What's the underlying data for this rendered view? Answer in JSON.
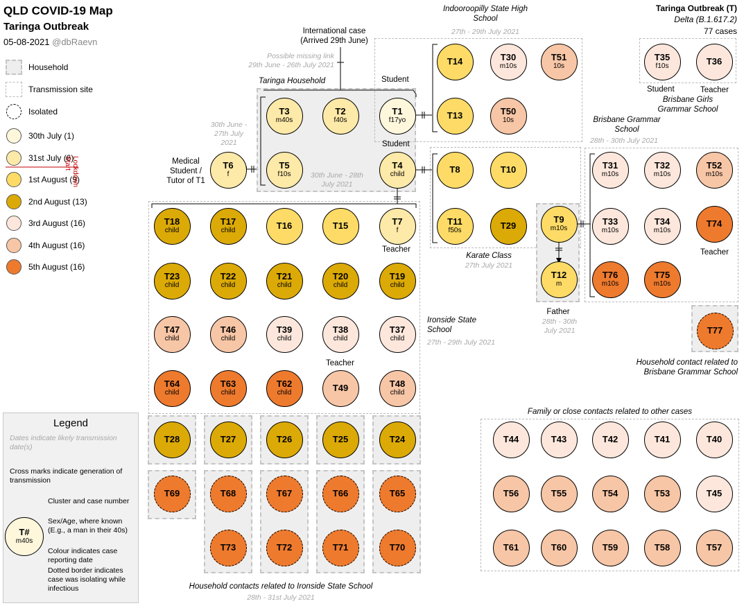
{
  "header": {
    "title": "QLD COVID-19 Map",
    "subtitle": "Taringa Outbreak",
    "date": "05-08-2021",
    "handle": "@dbRaevn"
  },
  "outbreak": {
    "title": "Taringa Outbreak (T)",
    "variant": "Delta (B.1.617.2)",
    "count": "77 cases"
  },
  "colors": {
    "jul30": "#fef7dc",
    "jul31": "#fde9a8",
    "aug1": "#fddb66",
    "aug2": "#dcaa06",
    "aug3": "#fde7dc",
    "aug4": "#f7c6a6",
    "aug5": "#ee7a2e",
    "household_fill": "#eeeeee",
    "lockdown_red": "#c00000"
  },
  "key": {
    "household": "Household",
    "transmission_site": "Transmission site",
    "isolated": "Isolated",
    "dates": [
      {
        "label": "30th July (1)",
        "color": "jul30"
      },
      {
        "label": "31st July (6)",
        "color": "jul31"
      },
      {
        "label": "1st August (9)",
        "color": "aug1"
      },
      {
        "label": "2nd August (13)",
        "color": "aug2"
      },
      {
        "label": "3rd August (16)",
        "color": "aug3"
      },
      {
        "label": "4th August (16)",
        "color": "aug4"
      },
      {
        "label": "5th August (16)",
        "color": "aug5"
      }
    ],
    "lockdown": "Lockdown Start"
  },
  "legend": {
    "title": "Legend",
    "dates_note": "Dates indicate likely transmission date(s)",
    "cross_note": "Cross marks indicate generation of transmission",
    "cluster_note": "Cluster and case number",
    "sexage_note": "Sex/Age, where known (E.g., a man in their 40s)",
    "colour_note": "Colour indicates case reporting date",
    "dotted_note": "Dotted border indicates case was isolating while infectious",
    "sample_id": "T#",
    "sample_sa": "m40s"
  },
  "labels": {
    "intl_case": "International case (Arrived 29th June)",
    "missing_link": "Possible missing link",
    "missing_link_dates": "29th June - 26th July 2021",
    "taringa_household": "Taringa Household",
    "t6_dates": "30th June - 27th July 2021",
    "t6_role": "Medical Student / Tutor of T1",
    "household_dates": "30th June - 28th July 2021",
    "t1_role": "Student",
    "t4_role": "Student",
    "t7_role": "Teacher",
    "t49_role": "Teacher",
    "indoo_school": "Indooroopilly State High School",
    "indoo_dates": "27th - 29th July 2021",
    "karate": "Karate Class",
    "karate_dates": "27th July 2021",
    "father": "Father",
    "father_dates": "28th - 30th July 2021",
    "bgs": "Brisbane Grammar School",
    "bgs_dates": "28th - 30th July 2021",
    "t74_role": "Teacher",
    "bggs_student": "Student",
    "bggs_teacher": "Teacher",
    "bggs": "Brisbane Girls Grammar School",
    "ironside": "Ironside State School",
    "ironside_dates": "27th - 29th July 2021",
    "t77_note": "Household contact related to Brisbane Grammar School",
    "family_contacts": "Family or close contacts related to other cases",
    "ironside_household": "Household contacts related to Ironside State School",
    "ironside_household_dates": "28th - 31st July 2021"
  },
  "cases": [
    {
      "id": "T1",
      "sa": "f17yo",
      "c": "jul30"
    },
    {
      "id": "T2",
      "sa": "f40s",
      "c": "jul31"
    },
    {
      "id": "T3",
      "sa": "m40s",
      "c": "jul31"
    },
    {
      "id": "T4",
      "sa": "child",
      "c": "jul31"
    },
    {
      "id": "T5",
      "sa": "f10s",
      "c": "jul31"
    },
    {
      "id": "T6",
      "sa": "f",
      "c": "jul31"
    },
    {
      "id": "T7",
      "sa": "f",
      "c": "jul31"
    },
    {
      "id": "T14",
      "sa": "",
      "c": "aug1"
    },
    {
      "id": "T30",
      "sa": "m10s",
      "c": "aug3"
    },
    {
      "id": "T51",
      "sa": "10s",
      "c": "aug4"
    },
    {
      "id": "T13",
      "sa": "",
      "c": "aug1"
    },
    {
      "id": "T50",
      "sa": "10s",
      "c": "aug4"
    },
    {
      "id": "T35",
      "sa": "f10s",
      "c": "aug3"
    },
    {
      "id": "T36",
      "sa": "",
      "c": "aug3"
    },
    {
      "id": "T8",
      "sa": "",
      "c": "aug1"
    },
    {
      "id": "T10",
      "sa": "",
      "c": "aug1"
    },
    {
      "id": "T11",
      "sa": "f50s",
      "c": "aug1"
    },
    {
      "id": "T29",
      "sa": "",
      "c": "aug2"
    },
    {
      "id": "T9",
      "sa": "m10s",
      "c": "aug1"
    },
    {
      "id": "T12",
      "sa": "m",
      "c": "aug1"
    },
    {
      "id": "T31",
      "sa": "m10s",
      "c": "aug3"
    },
    {
      "id": "T32",
      "sa": "m10s",
      "c": "aug3"
    },
    {
      "id": "T52",
      "sa": "m10s",
      "c": "aug4"
    },
    {
      "id": "T33",
      "sa": "m10s",
      "c": "aug3"
    },
    {
      "id": "T34",
      "sa": "m10s",
      "c": "aug3"
    },
    {
      "id": "T74",
      "sa": "",
      "c": "aug5"
    },
    {
      "id": "T76",
      "sa": "m10s",
      "c": "aug5"
    },
    {
      "id": "T75",
      "sa": "m10s",
      "c": "aug5"
    },
    {
      "id": "T77",
      "sa": "",
      "c": "aug5",
      "iso": true
    },
    {
      "id": "T18",
      "sa": "child",
      "c": "aug2"
    },
    {
      "id": "T17",
      "sa": "child",
      "c": "aug2"
    },
    {
      "id": "T16",
      "sa": "",
      "c": "aug1"
    },
    {
      "id": "T15",
      "sa": "",
      "c": "aug1"
    },
    {
      "id": "T23",
      "sa": "child",
      "c": "aug2"
    },
    {
      "id": "T22",
      "sa": "child",
      "c": "aug2"
    },
    {
      "id": "T21",
      "sa": "child",
      "c": "aug2"
    },
    {
      "id": "T20",
      "sa": "child",
      "c": "aug2"
    },
    {
      "id": "T19",
      "sa": "child",
      "c": "aug2"
    },
    {
      "id": "T47",
      "sa": "child",
      "c": "aug4"
    },
    {
      "id": "T46",
      "sa": "child",
      "c": "aug4"
    },
    {
      "id": "T39",
      "sa": "child",
      "c": "aug3"
    },
    {
      "id": "T38",
      "sa": "child",
      "c": "aug3"
    },
    {
      "id": "T37",
      "sa": "child",
      "c": "aug3"
    },
    {
      "id": "T64",
      "sa": "child",
      "c": "aug5"
    },
    {
      "id": "T63",
      "sa": "child",
      "c": "aug5"
    },
    {
      "id": "T62",
      "sa": "child",
      "c": "aug5"
    },
    {
      "id": "T49",
      "sa": "",
      "c": "aug4"
    },
    {
      "id": "T48",
      "sa": "child",
      "c": "aug4"
    },
    {
      "id": "T28",
      "sa": "",
      "c": "aug2"
    },
    {
      "id": "T27",
      "sa": "",
      "c": "aug2"
    },
    {
      "id": "T26",
      "sa": "",
      "c": "aug2"
    },
    {
      "id": "T25",
      "sa": "",
      "c": "aug2"
    },
    {
      "id": "T24",
      "sa": "",
      "c": "aug2"
    },
    {
      "id": "T69",
      "sa": "",
      "c": "aug5",
      "iso": true
    },
    {
      "id": "T68",
      "sa": "",
      "c": "aug5",
      "iso": true
    },
    {
      "id": "T67",
      "sa": "",
      "c": "aug5",
      "iso": true
    },
    {
      "id": "T66",
      "sa": "",
      "c": "aug5",
      "iso": true
    },
    {
      "id": "T65",
      "sa": "",
      "c": "aug5",
      "iso": true
    },
    {
      "id": "T73",
      "sa": "",
      "c": "aug5",
      "iso": true
    },
    {
      "id": "T72",
      "sa": "",
      "c": "aug5",
      "iso": true
    },
    {
      "id": "T71",
      "sa": "",
      "c": "aug5",
      "iso": true
    },
    {
      "id": "T70",
      "sa": "",
      "c": "aug5",
      "iso": true
    },
    {
      "id": "T44",
      "sa": "",
      "c": "aug3"
    },
    {
      "id": "T43",
      "sa": "",
      "c": "aug3"
    },
    {
      "id": "T42",
      "sa": "",
      "c": "aug3"
    },
    {
      "id": "T41",
      "sa": "",
      "c": "aug3"
    },
    {
      "id": "T40",
      "sa": "",
      "c": "aug3"
    },
    {
      "id": "T56",
      "sa": "",
      "c": "aug4"
    },
    {
      "id": "T55",
      "sa": "",
      "c": "aug4"
    },
    {
      "id": "T54",
      "sa": "",
      "c": "aug4"
    },
    {
      "id": "T53",
      "sa": "",
      "c": "aug4"
    },
    {
      "id": "T45",
      "sa": "",
      "c": "aug3"
    },
    {
      "id": "T61",
      "sa": "",
      "c": "aug4"
    },
    {
      "id": "T60",
      "sa": "",
      "c": "aug4"
    },
    {
      "id": "T59",
      "sa": "",
      "c": "aug4"
    },
    {
      "id": "T58",
      "sa": "",
      "c": "aug4"
    },
    {
      "id": "T57",
      "sa": "",
      "c": "aug4"
    }
  ]
}
